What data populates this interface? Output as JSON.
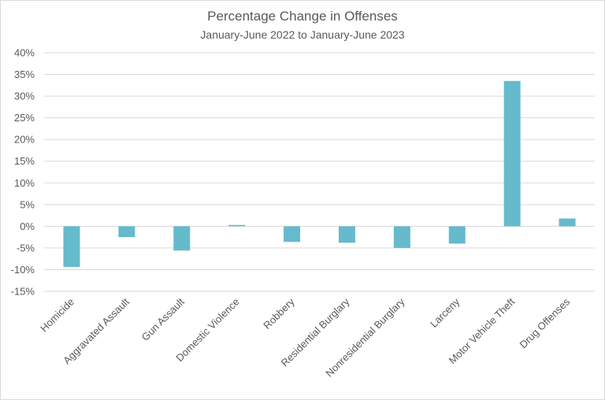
{
  "chart_data": {
    "type": "bar",
    "title": "Percentage Change in Offenses",
    "subtitle": "January-June 2022 to January-June 2023",
    "xlabel": "",
    "ylabel": "",
    "categories": [
      "Homicide",
      "Aggravated Assault",
      "Gun Assault",
      "Domestic Violence",
      "Robbery",
      "Residential Burglary",
      "Nonresidential Burglary",
      "Larceny",
      "Motor Vehicle Theft",
      "Drug Offenses"
    ],
    "values": [
      -9.4,
      -2.5,
      -5.6,
      0.3,
      -3.6,
      -3.8,
      -5.0,
      -4.0,
      33.5,
      1.8
    ],
    "ylim": [
      -15,
      40
    ],
    "yticks": [
      40,
      35,
      30,
      25,
      20,
      15,
      10,
      5,
      0,
      -5,
      -10,
      -15
    ],
    "ytick_labels": [
      "40%",
      "35%",
      "30%",
      "25%",
      "20%",
      "15%",
      "10%",
      "5%",
      "0%",
      "-5%",
      "-10%",
      "-15%"
    ],
    "grid": true,
    "legend": "none",
    "bar_color": "#65BBCB"
  }
}
